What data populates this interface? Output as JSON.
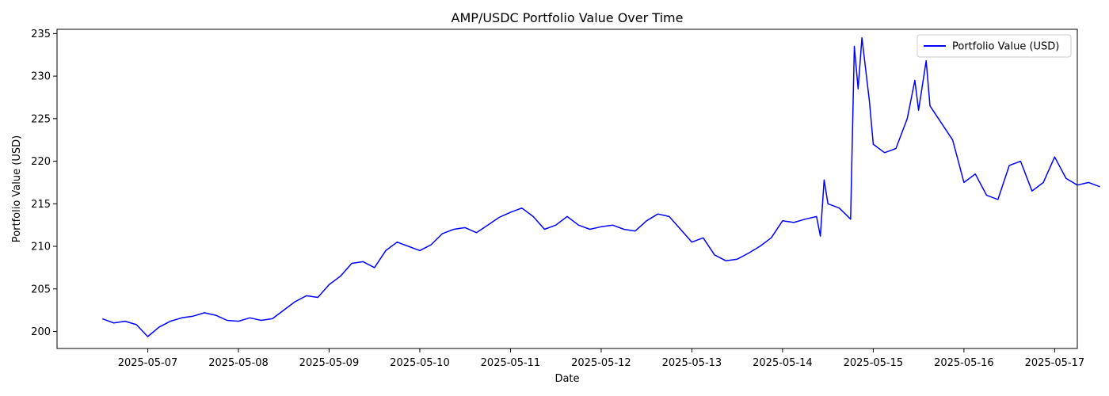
{
  "chart_data": {
    "type": "line",
    "title": "AMP/USDC Portfolio Value Over Time",
    "xlabel": "Date",
    "ylabel": "Portfolio Value (USD)",
    "xlim": [
      "2025-05-06 00:00",
      "2025-05-17 06:00"
    ],
    "ylim": [
      198,
      235.5
    ],
    "x_ticks": [
      "2025-05-07",
      "2025-05-08",
      "2025-05-09",
      "2025-05-10",
      "2025-05-11",
      "2025-05-12",
      "2025-05-13",
      "2025-05-14",
      "2025-05-15",
      "2025-05-16",
      "2025-05-17"
    ],
    "y_ticks": [
      200,
      205,
      210,
      215,
      220,
      225,
      230,
      235
    ],
    "grid": false,
    "legend_position": "top-right",
    "series": [
      {
        "name": "Portfolio Value (USD)",
        "color": "#0000ff",
        "points": [
          [
            "2025-05-06 12:00",
            201.5
          ],
          [
            "2025-05-06 15:00",
            201.0
          ],
          [
            "2025-05-06 18:00",
            201.2
          ],
          [
            "2025-05-06 21:00",
            200.8
          ],
          [
            "2025-05-07 00:00",
            199.4
          ],
          [
            "2025-05-07 03:00",
            200.5
          ],
          [
            "2025-05-07 06:00",
            201.2
          ],
          [
            "2025-05-07 09:00",
            201.6
          ],
          [
            "2025-05-07 12:00",
            201.8
          ],
          [
            "2025-05-07 15:00",
            202.2
          ],
          [
            "2025-05-07 18:00",
            201.9
          ],
          [
            "2025-05-07 21:00",
            201.3
          ],
          [
            "2025-05-08 00:00",
            201.2
          ],
          [
            "2025-05-08 03:00",
            201.6
          ],
          [
            "2025-05-08 06:00",
            201.3
          ],
          [
            "2025-05-08 09:00",
            201.5
          ],
          [
            "2025-05-08 12:00",
            202.5
          ],
          [
            "2025-05-08 15:00",
            203.5
          ],
          [
            "2025-05-08 18:00",
            204.2
          ],
          [
            "2025-05-08 21:00",
            204.0
          ],
          [
            "2025-05-09 00:00",
            205.5
          ],
          [
            "2025-05-09 03:00",
            206.5
          ],
          [
            "2025-05-09 06:00",
            208.0
          ],
          [
            "2025-05-09 09:00",
            208.2
          ],
          [
            "2025-05-09 12:00",
            207.5
          ],
          [
            "2025-05-09 15:00",
            209.5
          ],
          [
            "2025-05-09 18:00",
            210.5
          ],
          [
            "2025-05-09 21:00",
            210.0
          ],
          [
            "2025-05-10 00:00",
            209.5
          ],
          [
            "2025-05-10 03:00",
            210.2
          ],
          [
            "2025-05-10 06:00",
            211.5
          ],
          [
            "2025-05-10 09:00",
            212.0
          ],
          [
            "2025-05-10 12:00",
            212.2
          ],
          [
            "2025-05-10 15:00",
            211.6
          ],
          [
            "2025-05-10 18:00",
            212.5
          ],
          [
            "2025-05-10 21:00",
            213.4
          ],
          [
            "2025-05-11 00:00",
            214.0
          ],
          [
            "2025-05-11 03:00",
            214.5
          ],
          [
            "2025-05-11 06:00",
            213.5
          ],
          [
            "2025-05-11 09:00",
            212.0
          ],
          [
            "2025-05-11 12:00",
            212.5
          ],
          [
            "2025-05-11 15:00",
            213.5
          ],
          [
            "2025-05-11 18:00",
            212.5
          ],
          [
            "2025-05-11 21:00",
            212.0
          ],
          [
            "2025-05-12 00:00",
            212.3
          ],
          [
            "2025-05-12 03:00",
            212.5
          ],
          [
            "2025-05-12 06:00",
            212.0
          ],
          [
            "2025-05-12 09:00",
            211.8
          ],
          [
            "2025-05-12 12:00",
            213.0
          ],
          [
            "2025-05-12 15:00",
            213.8
          ],
          [
            "2025-05-12 18:00",
            213.5
          ],
          [
            "2025-05-12 21:00",
            212.0
          ],
          [
            "2025-05-13 00:00",
            210.5
          ],
          [
            "2025-05-13 03:00",
            211.0
          ],
          [
            "2025-05-13 06:00",
            209.0
          ],
          [
            "2025-05-13 09:00",
            208.3
          ],
          [
            "2025-05-13 12:00",
            208.5
          ],
          [
            "2025-05-13 15:00",
            209.2
          ],
          [
            "2025-05-13 18:00",
            210.0
          ],
          [
            "2025-05-13 21:00",
            211.0
          ],
          [
            "2025-05-14 00:00",
            213.0
          ],
          [
            "2025-05-14 03:00",
            212.8
          ],
          [
            "2025-05-14 06:00",
            213.2
          ],
          [
            "2025-05-14 09:00",
            213.5
          ],
          [
            "2025-05-14 10:00",
            211.2
          ],
          [
            "2025-05-14 11:00",
            217.8
          ],
          [
            "2025-05-14 12:00",
            215.0
          ],
          [
            "2025-05-14 15:00",
            214.5
          ],
          [
            "2025-05-14 18:00",
            213.2
          ],
          [
            "2025-05-14 19:00",
            233.5
          ],
          [
            "2025-05-14 20:00",
            228.5
          ],
          [
            "2025-05-14 21:00",
            234.5
          ],
          [
            "2025-05-14 23:00",
            227.0
          ],
          [
            "2025-05-15 00:00",
            222.0
          ],
          [
            "2025-05-15 03:00",
            221.0
          ],
          [
            "2025-05-15 06:00",
            221.5
          ],
          [
            "2025-05-15 09:00",
            225.0
          ],
          [
            "2025-05-15 11:00",
            229.5
          ],
          [
            "2025-05-15 12:00",
            226.0
          ],
          [
            "2025-05-15 14:00",
            231.8
          ],
          [
            "2025-05-15 15:00",
            226.5
          ],
          [
            "2025-05-15 18:00",
            224.5
          ],
          [
            "2025-05-15 21:00",
            222.5
          ],
          [
            "2025-05-16 00:00",
            217.5
          ],
          [
            "2025-05-16 03:00",
            218.5
          ],
          [
            "2025-05-16 06:00",
            216.0
          ],
          [
            "2025-05-16 09:00",
            215.5
          ],
          [
            "2025-05-16 12:00",
            219.5
          ],
          [
            "2025-05-16 15:00",
            220.0
          ],
          [
            "2025-05-16 18:00",
            216.5
          ],
          [
            "2025-05-16 21:00",
            217.5
          ],
          [
            "2025-05-17 00:00",
            220.5
          ],
          [
            "2025-05-17 03:00",
            218.0
          ],
          [
            "2025-05-17 06:00",
            217.2
          ],
          [
            "2025-05-17 09:00",
            217.5
          ],
          [
            "2025-05-17 12:00",
            217.0
          ]
        ]
      }
    ]
  }
}
